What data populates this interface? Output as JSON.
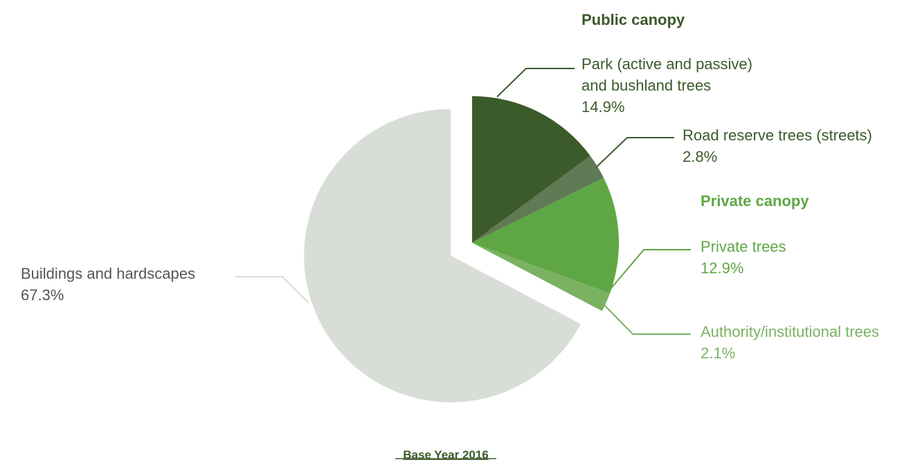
{
  "chart_data": {
    "type": "pie",
    "groups": [
      {
        "title": "Public canopy",
        "color": "#3a5a2a"
      },
      {
        "title": "Private canopy",
        "color": "#5fa744"
      }
    ],
    "slices": [
      {
        "label_lines": [
          "Park (active and passive)",
          "and bushland trees"
        ],
        "value": 14.9,
        "value_label": "14.9%",
        "color": "#3b5b2a",
        "label_color": "#3a5a2a",
        "leader_color": "#3a5a2a"
      },
      {
        "label_lines": [
          "Road reserve trees (streets)"
        ],
        "value": 2.8,
        "value_label": "2.8%",
        "color": "#5f7a55",
        "label_color": "#3a5a2a",
        "leader_color": "#3a5a2a"
      },
      {
        "label_lines": [
          "Private trees"
        ],
        "value": 12.9,
        "value_label": "12.9%",
        "color": "#5fa744",
        "label_color": "#5fa744",
        "leader_color": "#5fa744"
      },
      {
        "label_lines": [
          "Authority/institutional trees"
        ],
        "value": 2.1,
        "value_label": "2.1%",
        "color": "#7ab262",
        "label_color": "#7ab262",
        "leader_color": "#7ab262"
      },
      {
        "label_lines": [
          "Buildings and hardscapes"
        ],
        "value": 67.3,
        "value_label": "67.3%",
        "color": "#d9ddd7",
        "label_color": "#555555",
        "leader_color": "#d9ddd7",
        "exploded": true
      }
    ],
    "footer": "Base Year 2016"
  }
}
